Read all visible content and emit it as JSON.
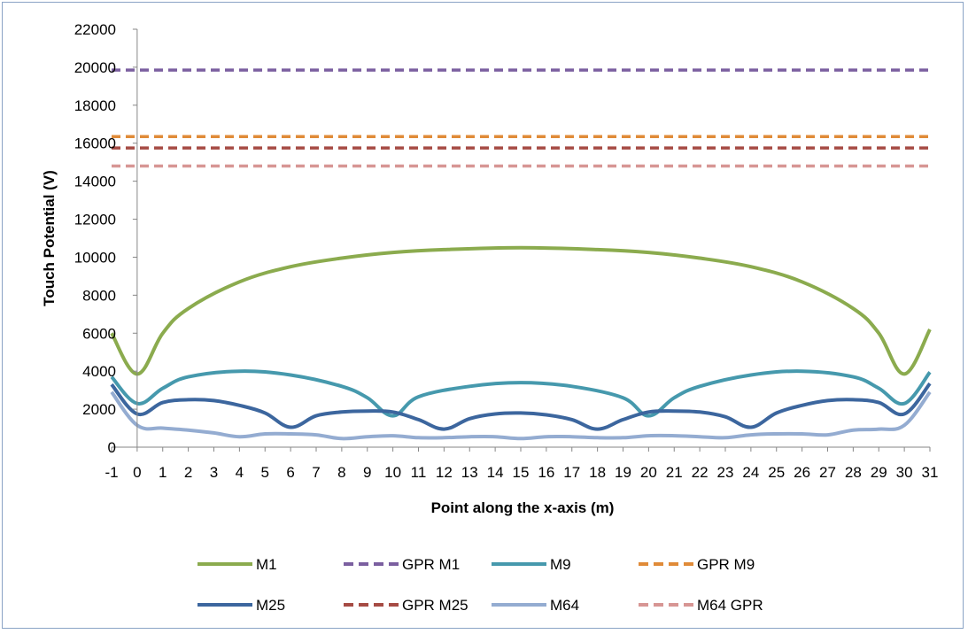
{
  "chart_data": {
    "type": "line",
    "title": "",
    "xlabel": "Point along the x-axis (m)",
    "ylabel": "Touch Potential (V)",
    "xlim": [
      -1,
      31
    ],
    "ylim": [
      0,
      22000
    ],
    "x_ticks": [
      -1,
      0,
      1,
      2,
      3,
      4,
      5,
      6,
      7,
      8,
      9,
      10,
      11,
      12,
      13,
      14,
      15,
      16,
      17,
      18,
      19,
      20,
      21,
      22,
      23,
      24,
      25,
      26,
      27,
      28,
      29,
      30,
      31
    ],
    "y_ticks": [
      0,
      2000,
      4000,
      6000,
      8000,
      10000,
      12000,
      14000,
      16000,
      18000,
      20000,
      22000
    ],
    "grid": false,
    "legend_position": "bottom",
    "series": [
      {
        "name": "M1",
        "color": "#8bab4e",
        "style": "solid",
        "x": [
          -1,
          0,
          1,
          2,
          4,
          6,
          8,
          10,
          12,
          15,
          18,
          20,
          22,
          24,
          26,
          28,
          29,
          30,
          31
        ],
        "y": [
          6000,
          3850,
          6000,
          7300,
          8700,
          9500,
          9950,
          10250,
          10400,
          10500,
          10400,
          10250,
          9950,
          9500,
          8700,
          7300,
          6000,
          3850,
          6200
        ]
      },
      {
        "name": "GPR M1",
        "color": "#7b5fa0",
        "style": "dashed",
        "x": [
          -1,
          31
        ],
        "y": [
          19850,
          19850
        ]
      },
      {
        "name": "M9",
        "color": "#4699ad",
        "style": "solid",
        "x": [
          -1,
          0,
          1,
          2,
          4,
          6,
          8,
          9,
          10,
          11,
          13,
          15,
          17,
          19,
          20,
          21,
          22,
          24,
          26,
          28,
          29,
          30,
          31
        ],
        "y": [
          3700,
          2300,
          3100,
          3700,
          4000,
          3800,
          3200,
          2600,
          1650,
          2650,
          3200,
          3400,
          3200,
          2600,
          1650,
          2600,
          3200,
          3800,
          4000,
          3700,
          3100,
          2300,
          3950
        ]
      },
      {
        "name": "GPR M9",
        "color": "#e08b38",
        "style": "dashed",
        "x": [
          -1,
          31
        ],
        "y": [
          16350,
          16350
        ]
      },
      {
        "name": "M25",
        "color": "#3c669e",
        "style": "solid",
        "x": [
          -1,
          0,
          1,
          2,
          3,
          4,
          5,
          6,
          7,
          8,
          9,
          10,
          11,
          12,
          13,
          14,
          15,
          16,
          17,
          18,
          19,
          20,
          21,
          22,
          23,
          24,
          25,
          26,
          27,
          28,
          29,
          30,
          31
        ],
        "y": [
          3300,
          1750,
          2350,
          2500,
          2450,
          2200,
          1800,
          1050,
          1650,
          1850,
          1900,
          1850,
          1450,
          950,
          1500,
          1750,
          1800,
          1700,
          1450,
          950,
          1450,
          1850,
          1900,
          1850,
          1600,
          1050,
          1800,
          2200,
          2450,
          2500,
          2350,
          1750,
          3350
        ]
      },
      {
        "name": "GPR M25",
        "color": "#a64b44",
        "style": "dashed",
        "x": [
          -1,
          31
        ],
        "y": [
          15750,
          15750
        ]
      },
      {
        "name": "M64",
        "color": "#94acd1",
        "style": "solid",
        "x": [
          -1,
          0,
          1,
          2,
          3,
          4,
          5,
          6,
          7,
          8,
          9,
          10,
          11,
          12,
          13,
          14,
          15,
          16,
          17,
          18,
          19,
          20,
          21,
          22,
          23,
          24,
          25,
          26,
          27,
          28,
          29,
          30,
          31
        ],
        "y": [
          2900,
          1150,
          1000,
          900,
          750,
          550,
          700,
          700,
          650,
          450,
          550,
          600,
          500,
          500,
          550,
          550,
          450,
          550,
          550,
          500,
          500,
          600,
          600,
          550,
          500,
          650,
          700,
          700,
          650,
          900,
          950,
          1150,
          2900
        ]
      },
      {
        "name": "M64 GPR",
        "color": "#d79694",
        "style": "dashed",
        "x": [
          -1,
          31
        ],
        "y": [
          14800,
          14800
        ]
      }
    ]
  }
}
